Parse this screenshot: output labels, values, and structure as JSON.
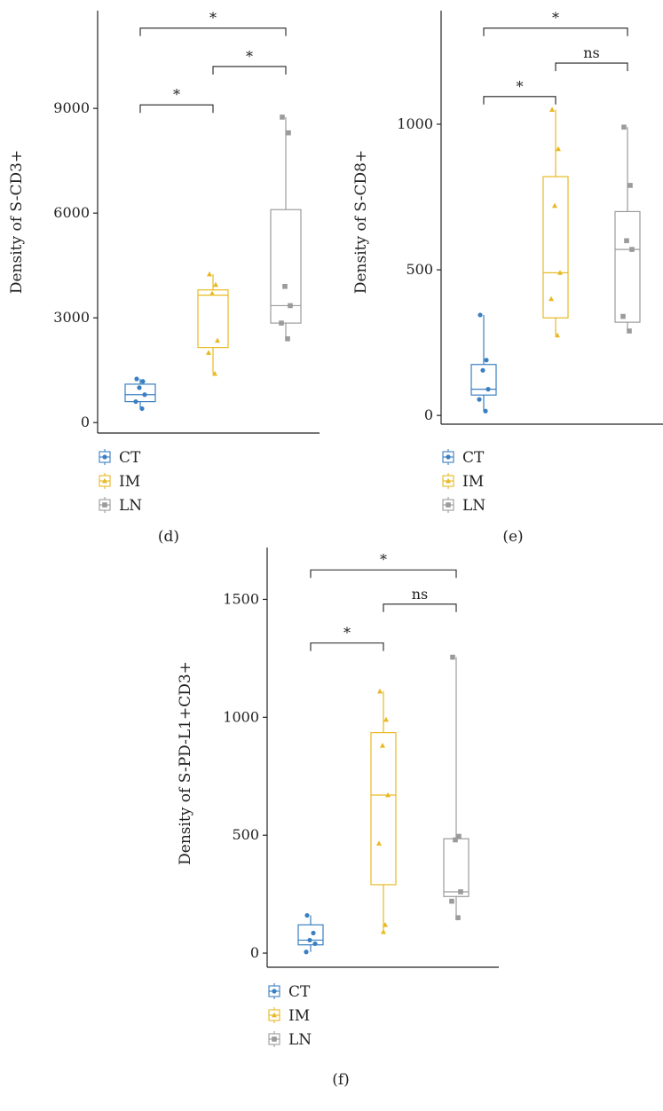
{
  "colors": {
    "CT": "#3a7fc1",
    "IM": "#e8b923",
    "LN": "#9b9b9b"
  },
  "chart_data": [
    {
      "panel": "(d)",
      "type": "box",
      "ylabel": "Density of S-CD3+",
      "ylim": [
        -300,
        11800
      ],
      "yticks": [
        0,
        3000,
        6000,
        9000
      ],
      "categories": [
        "CT",
        "IM",
        "LN"
      ],
      "legend": [
        "CT",
        "IM",
        "LN"
      ],
      "boxes": [
        {
          "name": "CT",
          "marker": "circle",
          "min": 400,
          "q1": 600,
          "median": 800,
          "q3": 1100,
          "max": 1250,
          "points": [
            1250,
            1180,
            1000,
            800,
            600,
            400
          ]
        },
        {
          "name": "IM",
          "marker": "triangle",
          "min": 1400,
          "q1": 2150,
          "median": 3650,
          "q3": 3800,
          "max": 4250,
          "points": [
            4250,
            3950,
            3700,
            2350,
            2000,
            1400
          ]
        },
        {
          "name": "LN",
          "marker": "square",
          "min": 2400,
          "q1": 2850,
          "median": 3350,
          "q3": 6100,
          "max": 8750,
          "points": [
            8750,
            8300,
            3900,
            3350,
            2850,
            2400
          ]
        }
      ],
      "brackets": [
        {
          "from": "CT",
          "to": "LN",
          "label": "*",
          "y": 11300
        },
        {
          "from": "IM",
          "to": "LN",
          "label": "*",
          "y": 10200
        },
        {
          "from": "CT",
          "to": "IM",
          "label": "*",
          "y": 9100
        }
      ]
    },
    {
      "panel": "(e)",
      "type": "box",
      "ylabel": "Density of S-CD8+",
      "ylim": [
        -30,
        1390
      ],
      "yticks": [
        0,
        500,
        1000
      ],
      "categories": [
        "CT",
        "IM",
        "LN"
      ],
      "legend": [
        "CT",
        "IM",
        "LN"
      ],
      "boxes": [
        {
          "name": "CT",
          "marker": "circle",
          "min": 15,
          "q1": 70,
          "median": 90,
          "q3": 175,
          "max": 345,
          "points": [
            345,
            190,
            155,
            90,
            55,
            15
          ]
        },
        {
          "name": "IM",
          "marker": "triangle",
          "min": 275,
          "q1": 335,
          "median": 490,
          "q3": 820,
          "max": 1050,
          "points": [
            1050,
            915,
            720,
            490,
            400,
            275
          ]
        },
        {
          "name": "LN",
          "marker": "square",
          "min": 290,
          "q1": 320,
          "median": 570,
          "q3": 700,
          "max": 990,
          "points": [
            990,
            790,
            600,
            570,
            340,
            290
          ]
        }
      ],
      "brackets": [
        {
          "from": "CT",
          "to": "LN",
          "label": "*",
          "y": 1330
        },
        {
          "from": "IM",
          "to": "LN",
          "label": "ns",
          "y": 1210
        },
        {
          "from": "CT",
          "to": "IM",
          "label": "*",
          "y": 1095
        }
      ]
    },
    {
      "panel": "(f)",
      "type": "box",
      "ylabel": "Density of S-PD-L1+CD3+",
      "ylim": [
        -60,
        1720
      ],
      "yticks": [
        0,
        500,
        1000,
        1500
      ],
      "categories": [
        "CT",
        "IM",
        "LN"
      ],
      "legend": [
        "CT",
        "IM",
        "LN"
      ],
      "boxes": [
        {
          "name": "CT",
          "marker": "circle",
          "min": 5,
          "q1": 35,
          "median": 55,
          "q3": 120,
          "max": 160,
          "points": [
            160,
            85,
            55,
            40,
            5
          ]
        },
        {
          "name": "IM",
          "marker": "triangle",
          "min": 90,
          "q1": 290,
          "median": 670,
          "q3": 935,
          "max": 1110,
          "points": [
            1110,
            990,
            880,
            670,
            465,
            120,
            90
          ]
        },
        {
          "name": "LN",
          "marker": "square",
          "min": 150,
          "q1": 240,
          "median": 260,
          "q3": 485,
          "max": 1255,
          "points": [
            1255,
            495,
            480,
            260,
            220,
            150
          ]
        }
      ],
      "brackets": [
        {
          "from": "CT",
          "to": "LN",
          "label": "*",
          "y": 1625
        },
        {
          "from": "IM",
          "to": "LN",
          "label": "ns",
          "y": 1480
        },
        {
          "from": "CT",
          "to": "IM",
          "label": "*",
          "y": 1315
        }
      ]
    }
  ]
}
